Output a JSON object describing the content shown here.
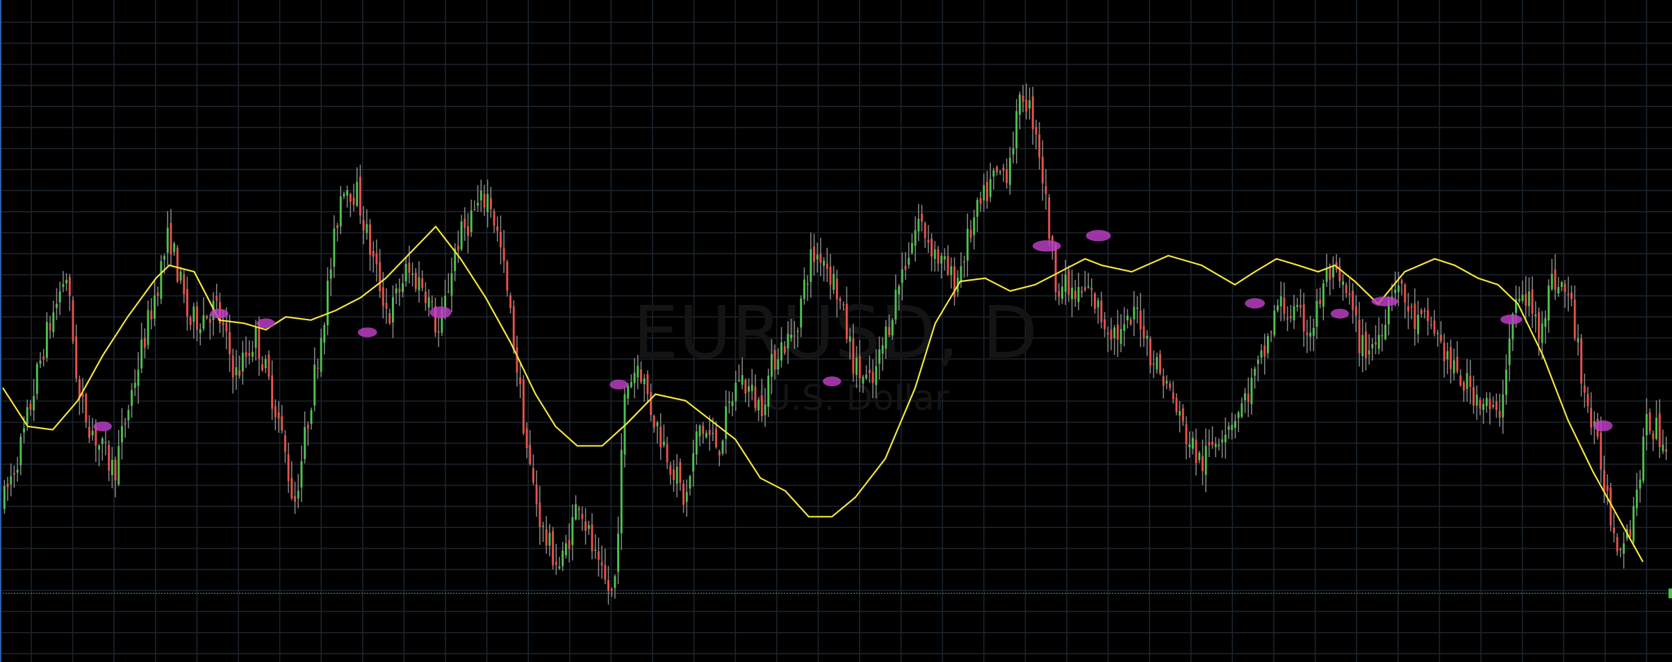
{
  "watermark": {
    "symbol": "EURUSD, D",
    "description": "/U.S. Dollar"
  },
  "colors": {
    "background": "#000000",
    "grid": "#1c2630",
    "candle_up": "#4fc24f",
    "candle_down": "#e8524a",
    "wick": "#8a8a8a",
    "moving_average": "#f5e63c",
    "marker": "#c040c8",
    "price_line": "#2e8b3e"
  },
  "chart_data": {
    "type": "candlestick",
    "symbol": "EURUSD",
    "timeframe": "D",
    "grid": true,
    "ylim": [
      0,
      1000
    ],
    "x_range": [
      0,
      1000
    ],
    "close_path": [
      [
        0,
        240
      ],
      [
        12,
        340
      ],
      [
        25,
        490
      ],
      [
        38,
        600
      ],
      [
        46,
        400
      ],
      [
        58,
        330
      ],
      [
        67,
        290
      ],
      [
        78,
        420
      ],
      [
        90,
        550
      ],
      [
        100,
        660
      ],
      [
        112,
        520
      ],
      [
        128,
        545
      ],
      [
        140,
        440
      ],
      [
        152,
        500
      ],
      [
        165,
        380
      ],
      [
        175,
        240
      ],
      [
        182,
        350
      ],
      [
        195,
        570
      ],
      [
        204,
        740
      ],
      [
        213,
        720
      ],
      [
        222,
        620
      ],
      [
        232,
        530
      ],
      [
        242,
        600
      ],
      [
        253,
        580
      ],
      [
        262,
        500
      ],
      [
        272,
        640
      ],
      [
        282,
        690
      ],
      [
        292,
        720
      ],
      [
        300,
        620
      ],
      [
        308,
        470
      ],
      [
        316,
        300
      ],
      [
        325,
        190
      ],
      [
        335,
        140
      ],
      [
        346,
        250
      ],
      [
        358,
        130
      ],
      [
        367,
        95
      ],
      [
        374,
        420
      ],
      [
        382,
        460
      ],
      [
        390,
        380
      ],
      [
        402,
        300
      ],
      [
        410,
        240
      ],
      [
        418,
        360
      ],
      [
        430,
        330
      ],
      [
        442,
        440
      ],
      [
        455,
        390
      ],
      [
        465,
        480
      ],
      [
        475,
        500
      ],
      [
        485,
        620
      ],
      [
        492,
        630
      ],
      [
        500,
        580
      ],
      [
        512,
        450
      ],
      [
        522,
        420
      ],
      [
        532,
        520
      ],
      [
        540,
        600
      ],
      [
        550,
        680
      ],
      [
        562,
        620
      ],
      [
        572,
        580
      ],
      [
        582,
        670
      ],
      [
        594,
        740
      ],
      [
        603,
        760
      ],
      [
        613,
        880
      ],
      [
        621,
        820
      ],
      [
        632,
        590
      ],
      [
        644,
        560
      ],
      [
        652,
        570
      ],
      [
        662,
        520
      ],
      [
        672,
        500
      ],
      [
        682,
        540
      ],
      [
        690,
        470
      ],
      [
        700,
        420
      ],
      [
        710,
        350
      ],
      [
        720,
        300
      ],
      [
        730,
        350
      ],
      [
        744,
        390
      ],
      [
        756,
        460
      ],
      [
        766,
        550
      ],
      [
        776,
        530
      ],
      [
        786,
        510
      ],
      [
        796,
        600
      ],
      [
        808,
        560
      ],
      [
        816,
        480
      ],
      [
        825,
        490
      ],
      [
        836,
        590
      ],
      [
        848,
        520
      ],
      [
        858,
        520
      ],
      [
        872,
        440
      ],
      [
        885,
        410
      ],
      [
        898,
        370
      ],
      [
        908,
        550
      ],
      [
        916,
        560
      ],
      [
        922,
        510
      ],
      [
        931,
        590
      ],
      [
        941,
        560
      ],
      [
        951,
        400
      ],
      [
        961,
        290
      ],
      [
        969,
        180
      ],
      [
        978,
        210
      ],
      [
        988,
        370
      ],
      [
        997,
        340
      ]
    ],
    "moving_average": [
      [
        0,
        420
      ],
      [
        15,
        360
      ],
      [
        30,
        355
      ],
      [
        45,
        400
      ],
      [
        60,
        470
      ],
      [
        75,
        530
      ],
      [
        92,
        590
      ],
      [
        100,
        610
      ],
      [
        115,
        600
      ],
      [
        130,
        525
      ],
      [
        145,
        520
      ],
      [
        158,
        510
      ],
      [
        170,
        530
      ],
      [
        185,
        525
      ],
      [
        200,
        540
      ],
      [
        215,
        560
      ],
      [
        230,
        590
      ],
      [
        245,
        630
      ],
      [
        260,
        670
      ],
      [
        275,
        620
      ],
      [
        290,
        560
      ],
      [
        305,
        490
      ],
      [
        320,
        410
      ],
      [
        332,
        360
      ],
      [
        345,
        330
      ],
      [
        360,
        330
      ],
      [
        375,
        365
      ],
      [
        392,
        410
      ],
      [
        410,
        400
      ],
      [
        425,
        370
      ],
      [
        440,
        340
      ],
      [
        455,
        280
      ],
      [
        470,
        260
      ],
      [
        484,
        220
      ],
      [
        498,
        220
      ],
      [
        512,
        250
      ],
      [
        530,
        310
      ],
      [
        548,
        420
      ],
      [
        560,
        520
      ],
      [
        575,
        585
      ],
      [
        590,
        590
      ],
      [
        605,
        570
      ],
      [
        620,
        580
      ],
      [
        635,
        600
      ],
      [
        650,
        620
      ],
      [
        660,
        610
      ],
      [
        678,
        600
      ],
      [
        700,
        625
      ],
      [
        720,
        610
      ],
      [
        740,
        580
      ],
      [
        752,
        600
      ],
      [
        765,
        620
      ],
      [
        778,
        610
      ],
      [
        790,
        600
      ],
      [
        800,
        610
      ],
      [
        812,
        585
      ],
      [
        826,
        550
      ],
      [
        842,
        600
      ],
      [
        860,
        620
      ],
      [
        872,
        610
      ],
      [
        886,
        590
      ],
      [
        898,
        580
      ],
      [
        910,
        550
      ],
      [
        925,
        470
      ],
      [
        940,
        370
      ],
      [
        955,
        290
      ],
      [
        970,
        220
      ],
      [
        985,
        150
      ]
    ],
    "markers": [
      {
        "x": 60,
        "y": 360,
        "rx": 5.5,
        "ry": 7.6
      },
      {
        "x": 130,
        "y": 535,
        "rx": 5.5,
        "ry": 7.6
      },
      {
        "x": 158,
        "y": 520,
        "rx": 5.5,
        "ry": 7.6
      },
      {
        "x": 219,
        "y": 506,
        "rx": 5.8,
        "ry": 7.6
      },
      {
        "x": 263,
        "y": 537,
        "rx": 6.5,
        "ry": 9.2
      },
      {
        "x": 370,
        "y": 425,
        "rx": 5.5,
        "ry": 7.6
      },
      {
        "x": 498,
        "y": 430,
        "rx": 5.5,
        "ry": 7.6
      },
      {
        "x": 627,
        "y": 640,
        "rx": 8.5,
        "ry": 8.8
      },
      {
        "x": 658,
        "y": 656,
        "rx": 7.5,
        "ry": 8.8
      },
      {
        "x": 752,
        "y": 551,
        "rx": 6.0,
        "ry": 8.0
      },
      {
        "x": 803,
        "y": 535,
        "rx": 5.5,
        "ry": 7.6
      },
      {
        "x": 830,
        "y": 554,
        "rx": 8.0,
        "ry": 7.6
      },
      {
        "x": 906,
        "y": 526,
        "rx": 6.5,
        "ry": 7.6
      },
      {
        "x": 961,
        "y": 361,
        "rx": 5.8,
        "ry": 8.5
      }
    ],
    "current_price_level": 101
  }
}
